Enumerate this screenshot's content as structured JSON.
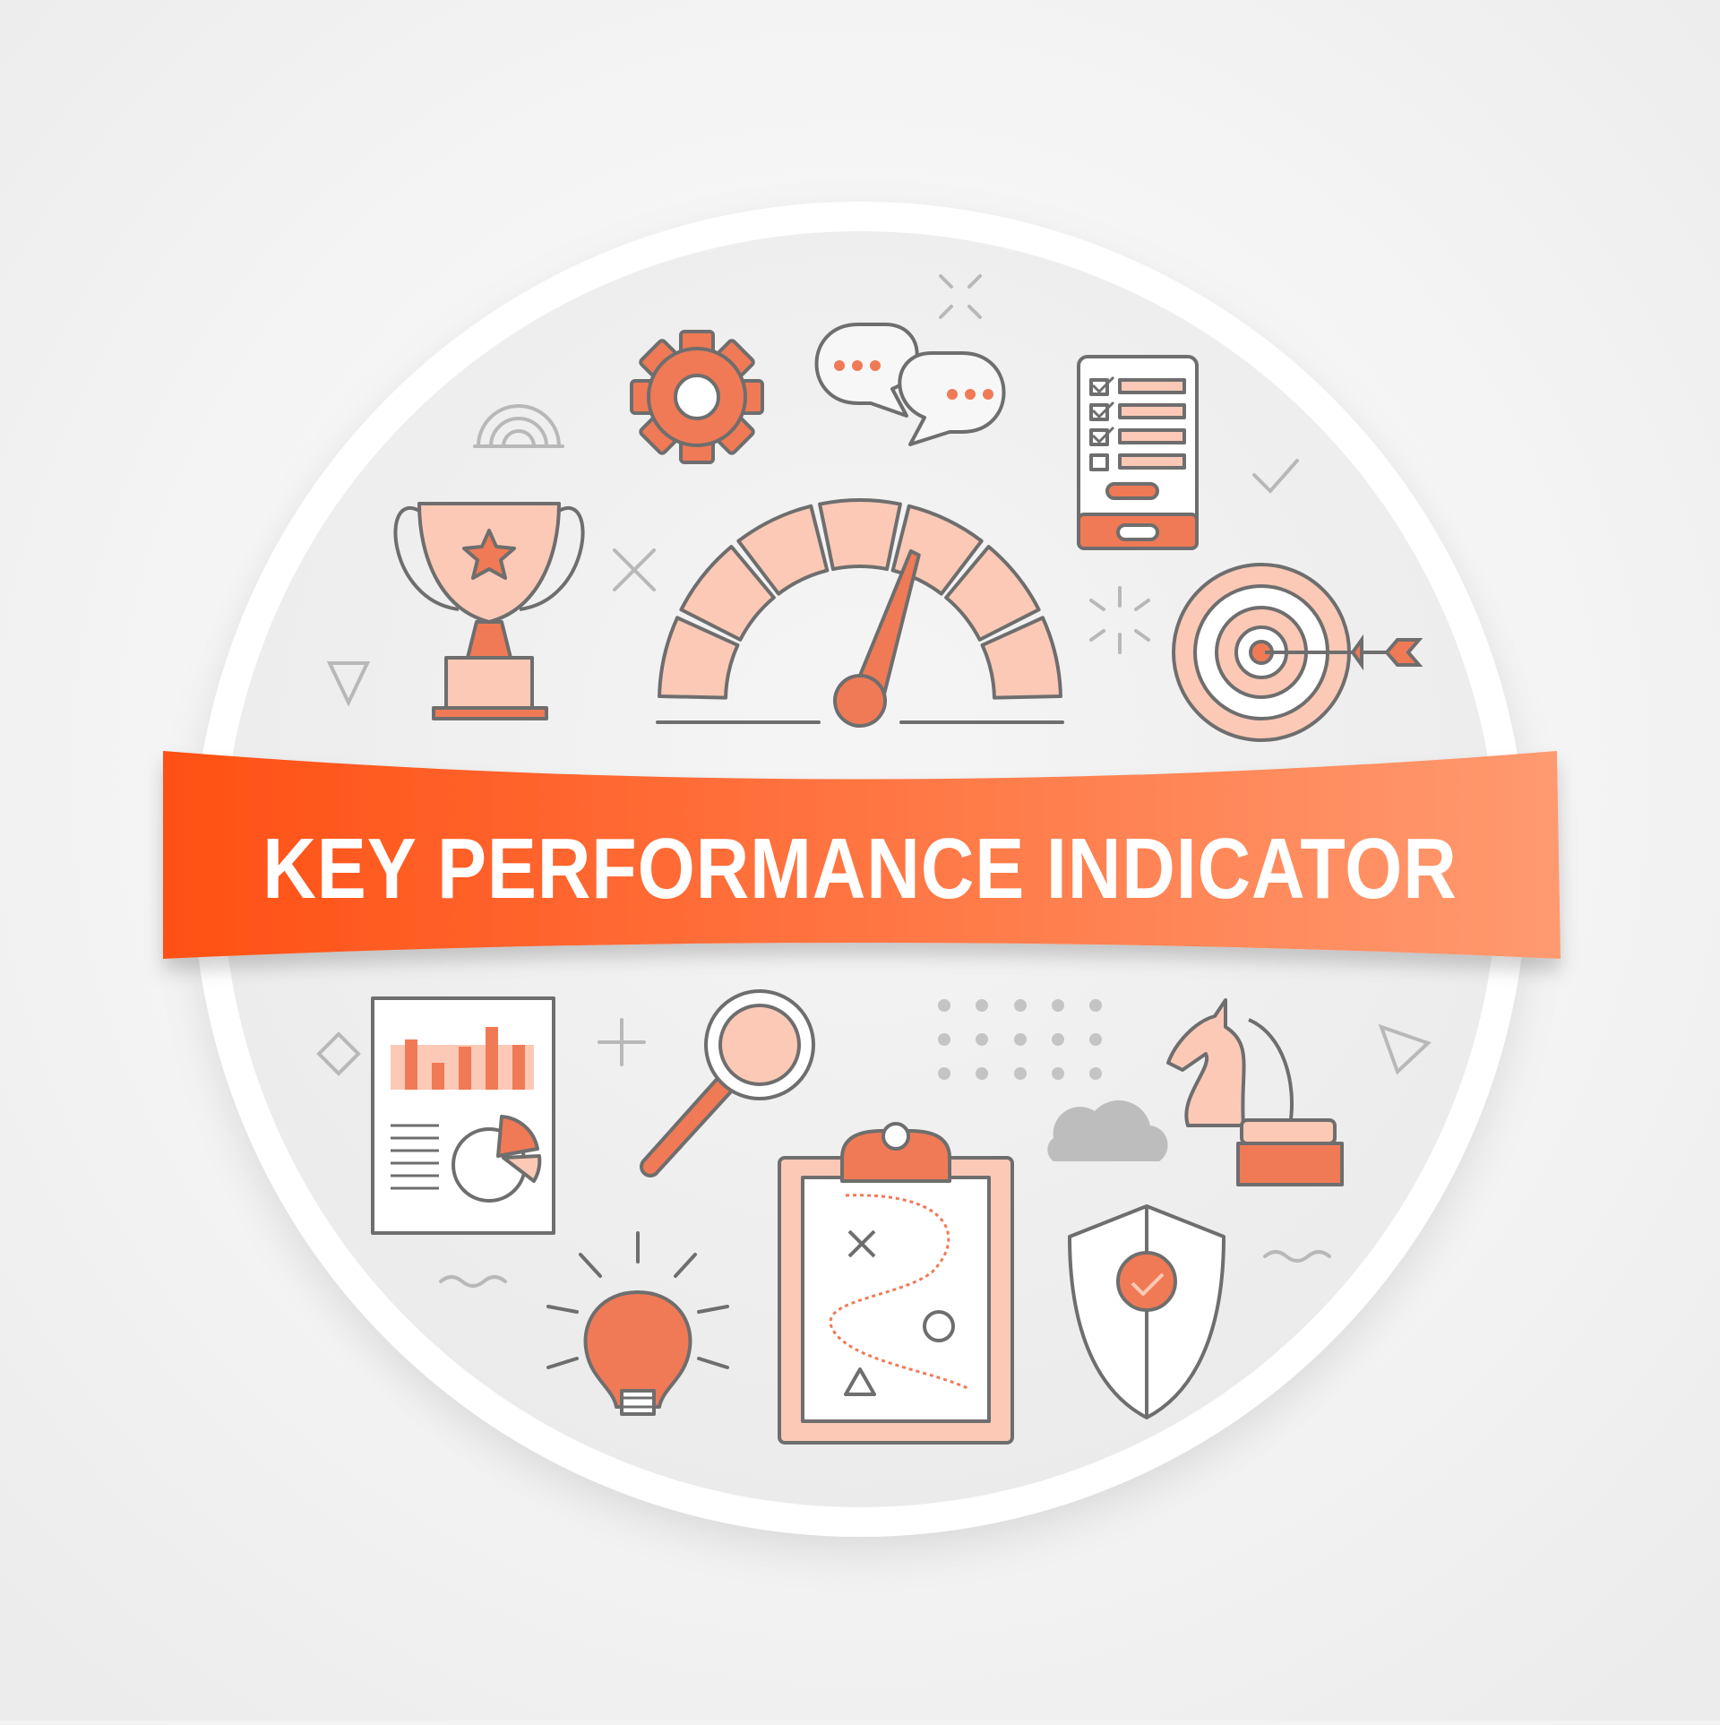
{
  "title": "KEY PERFORMANCE INDICATOR",
  "colors": {
    "background": "#f3f3f3",
    "accent": "#f07a56",
    "accent_light": "#fbc9b6",
    "banner_start": "#ff5014",
    "banner_end": "#ff9a70",
    "outline": "#6e6e6e",
    "decor": "#b8b8b8"
  },
  "icons": [
    "trophy-icon",
    "gear-icon",
    "chat-bubbles-icon",
    "checklist-phone-icon",
    "speedometer-gauge-icon",
    "target-arrow-icon",
    "report-chart-icon",
    "magnifier-icon",
    "strategy-clipboard-icon",
    "chess-knight-icon",
    "lightbulb-icon",
    "shield-check-icon",
    "cloud-icon"
  ],
  "gauge": {
    "segments": 7,
    "needle_level": 0.62
  }
}
